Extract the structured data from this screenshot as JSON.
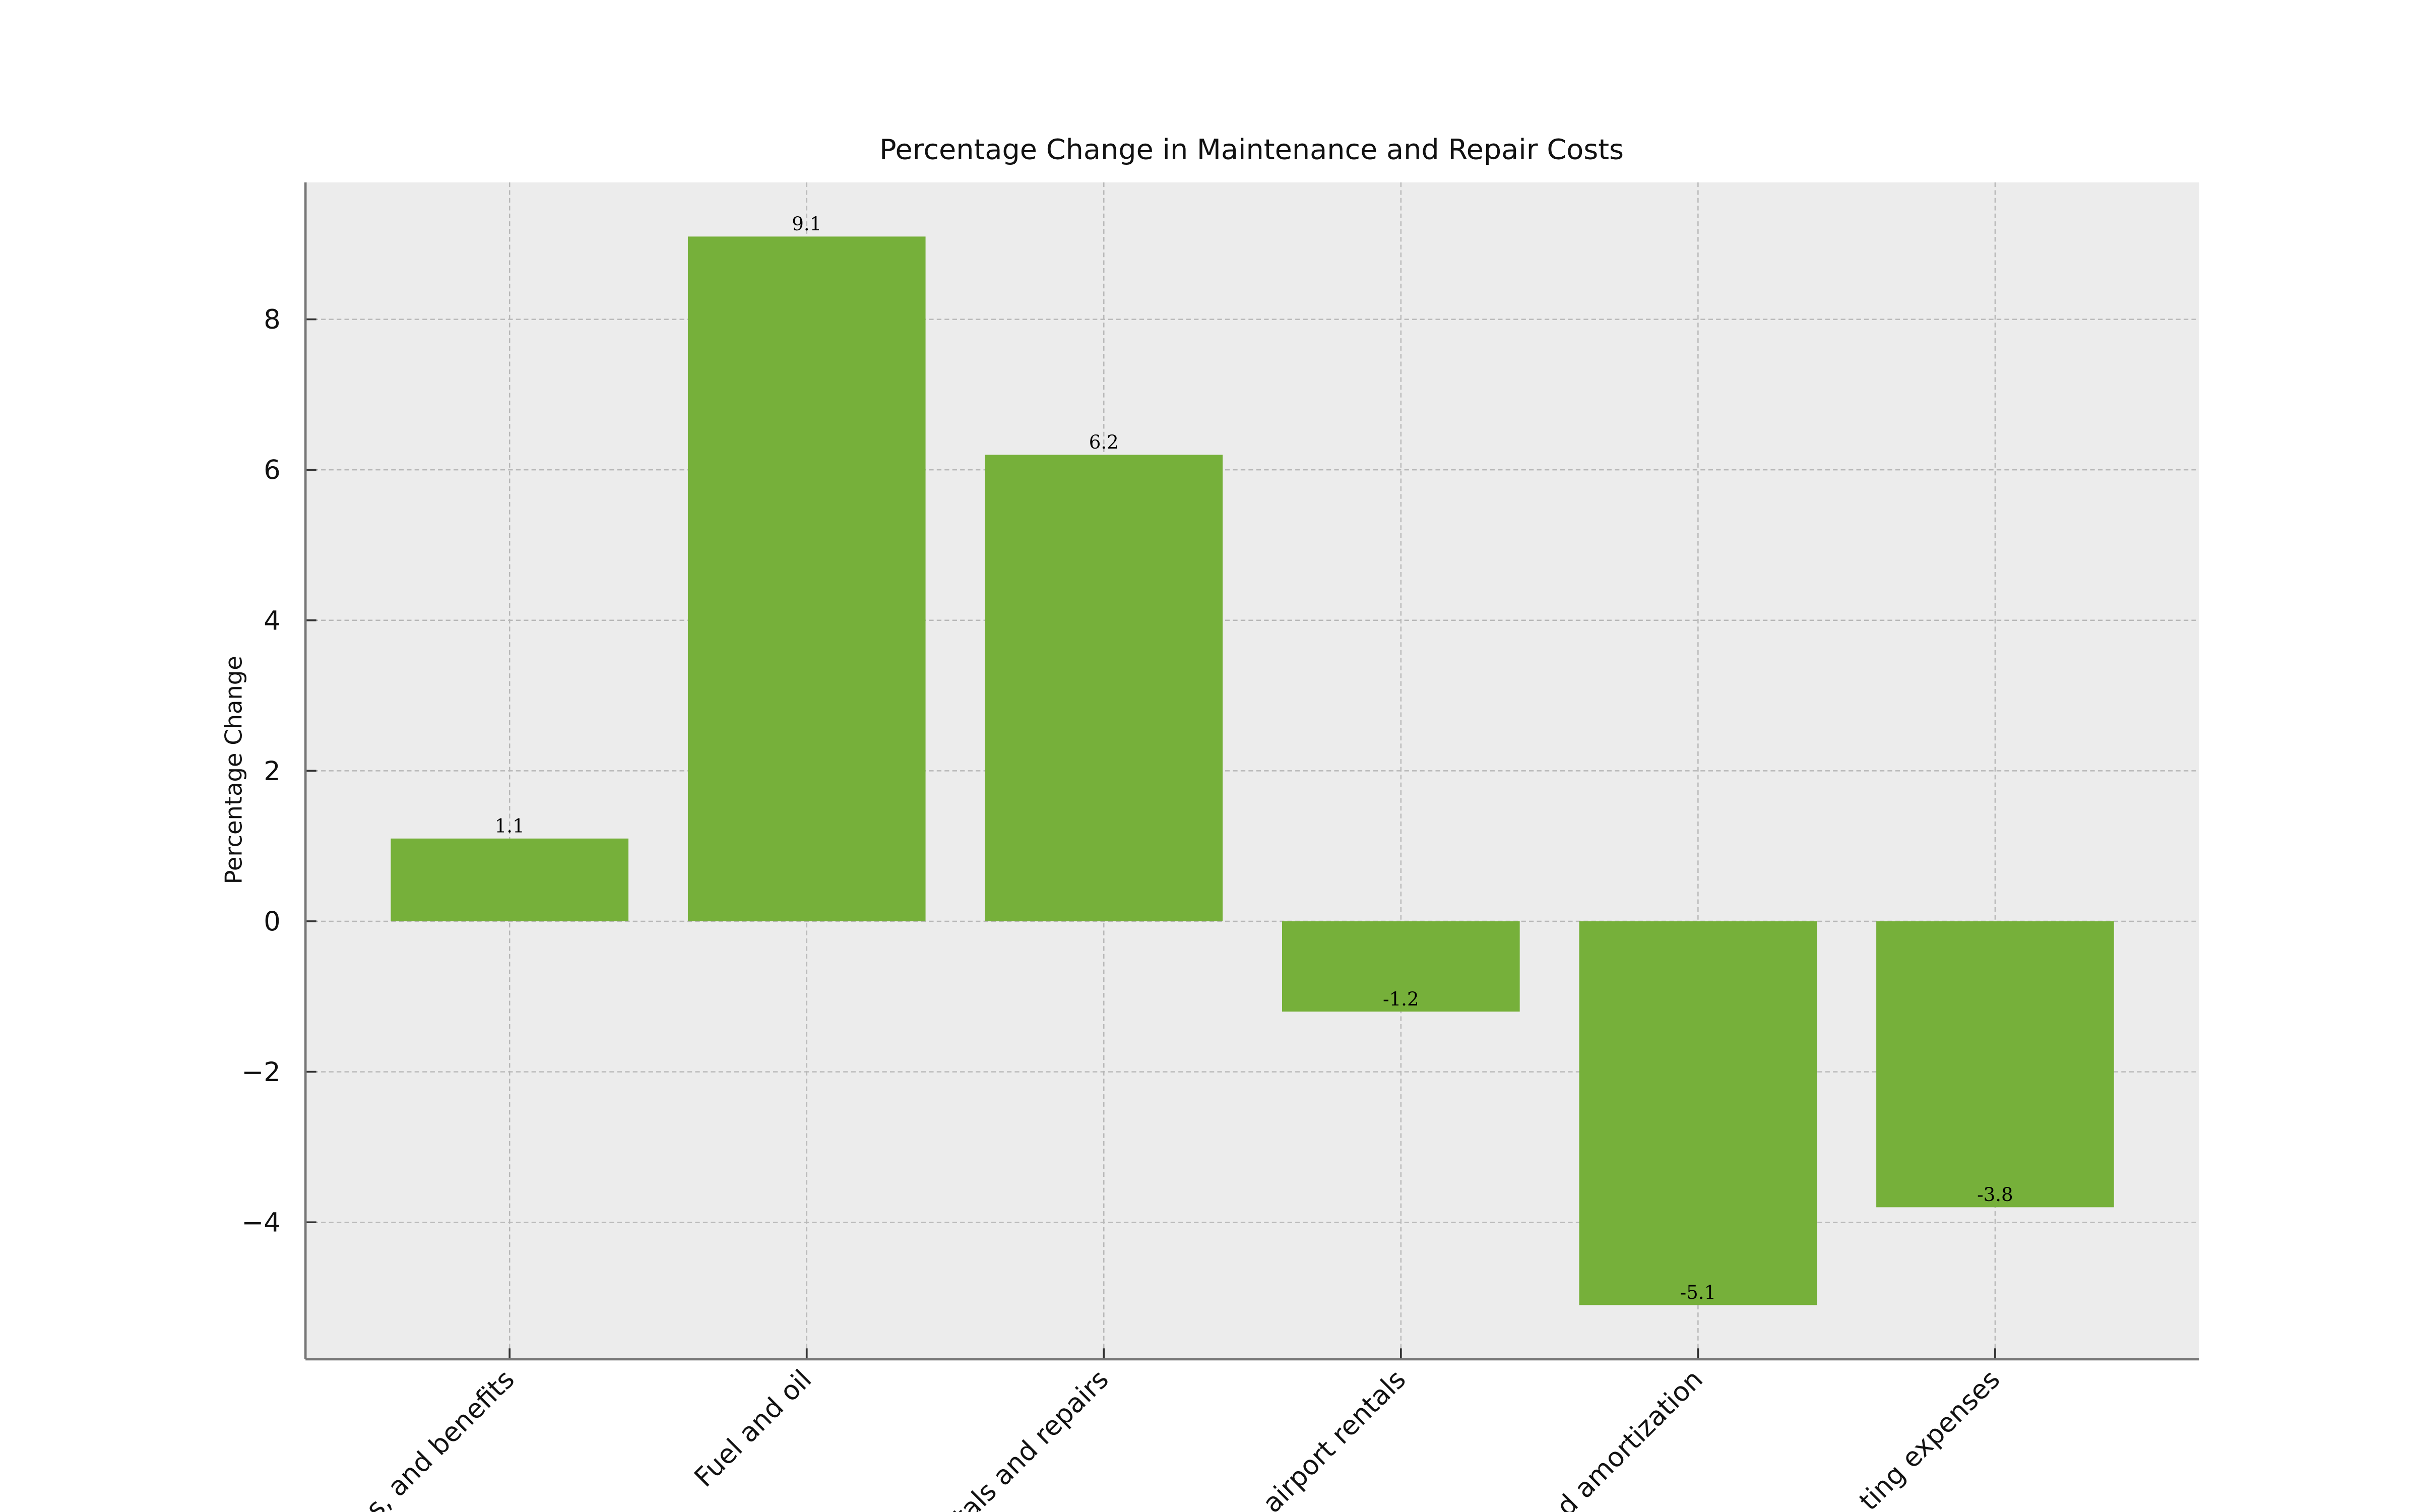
{
  "chart_data": {
    "type": "bar",
    "title": "Percentage Change in Maintenance and Repair Costs",
    "y_label": "Percentage Change",
    "categories": [
      "s, and benefits",
      "Fuel and oil",
      "tals and repairs",
      "airport rentals",
      "d amortization",
      "ting expenses"
    ],
    "values": [
      1.1,
      9.1,
      6.2,
      -1.2,
      -5.1,
      -3.8
    ],
    "color": "#76b03a",
    "ylim": [
      -5.82,
      9.82
    ],
    "yticks": [
      {
        "value": -4,
        "label": "−4"
      },
      {
        "value": -2,
        "label": "−2"
      },
      0,
      2,
      4,
      6,
      8
    ],
    "grid": true
  }
}
